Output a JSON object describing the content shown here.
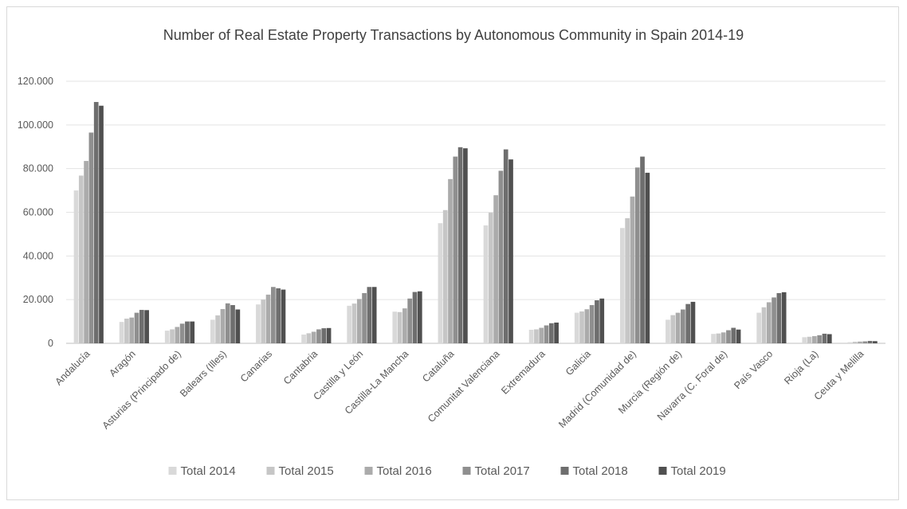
{
  "chart_data": {
    "type": "bar",
    "title": "Number of Real Estate Property Transactions by Autonomous Community in Spain 2014-19",
    "xlabel": "",
    "ylabel": "",
    "ylim": [
      0,
      120000
    ],
    "yticks": [
      0,
      20000,
      40000,
      60000,
      80000,
      100000,
      120000
    ],
    "ytick_labels": [
      "0",
      "20.000",
      "40.000",
      "60.000",
      "80.000",
      "100.000",
      "120.000"
    ],
    "grid": true,
    "legend_position": "bottom",
    "categories": [
      "Andalucía",
      "Aragón",
      "Asturias (Principado de)",
      "Balears (Illes)",
      "Canarias",
      "Cantabria",
      "Castilla y León",
      "Castilla-La Mancha",
      "Cataluña",
      "Comunitat Valenciana",
      "Extremadura",
      "Galicia",
      "Madrid (Comunidad de)",
      "Murcia (Región de)",
      "Navarra (C. Foral de)",
      "País Vasco",
      "Rioja (La)",
      "Ceuta y Melilla"
    ],
    "series": [
      {
        "name": "Total 2014",
        "color": "#d9d9d9",
        "values": [
          70000,
          9800,
          5800,
          10800,
          17800,
          4000,
          17200,
          14500,
          55000,
          54000,
          6200,
          14000,
          52800,
          10800,
          4300,
          14000,
          2800,
          500
        ]
      },
      {
        "name": "Total 2015",
        "color": "#c6c6c6",
        "values": [
          76800,
          11300,
          6400,
          12800,
          20000,
          4600,
          18200,
          14300,
          61000,
          59800,
          6400,
          14600,
          57300,
          12900,
          4500,
          16500,
          3000,
          700
        ]
      },
      {
        "name": "Total 2016",
        "color": "#ababab",
        "values": [
          83500,
          11800,
          7500,
          15700,
          22300,
          5300,
          20300,
          16000,
          75200,
          67800,
          7100,
          15600,
          67200,
          14000,
          5000,
          18800,
          3300,
          800
        ]
      },
      {
        "name": "Total 2017",
        "color": "#8f8f8f",
        "values": [
          96500,
          14000,
          9000,
          18300,
          25800,
          6400,
          23000,
          20500,
          85500,
          79000,
          8200,
          17500,
          80500,
          15500,
          6000,
          21000,
          3700,
          900
        ]
      },
      {
        "name": "Total 2018",
        "color": "#6e6e6e",
        "values": [
          110500,
          15300,
          10000,
          17500,
          25200,
          6900,
          25800,
          23500,
          89800,
          88800,
          9200,
          19700,
          85500,
          18000,
          7100,
          23000,
          4400,
          1100
        ]
      },
      {
        "name": "Total 2019",
        "color": "#505050",
        "values": [
          108800,
          15200,
          10000,
          15500,
          24600,
          7000,
          25800,
          23800,
          89300,
          84200,
          9500,
          20500,
          78100,
          19000,
          6300,
          23400,
          4200,
          1000
        ]
      }
    ]
  }
}
